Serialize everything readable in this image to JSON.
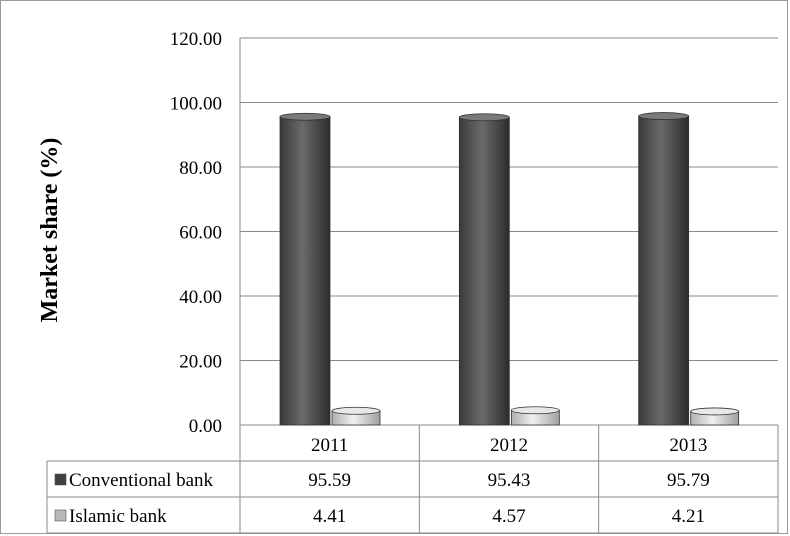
{
  "chart_data": {
    "type": "bar",
    "categories": [
      "2011",
      "2012",
      "2013"
    ],
    "series": [
      {
        "name": "Conventional bank",
        "values": [
          95.59,
          95.43,
          95.79
        ],
        "labels": [
          "95.59",
          "95.43",
          "95.79"
        ],
        "color": "#595959"
      },
      {
        "name": "Islamic bank",
        "values": [
          4.41,
          4.57,
          4.21
        ],
        "labels": [
          "4.41",
          "4.57",
          "4.21"
        ],
        "color": "#c8c8c8"
      }
    ],
    "title": "",
    "xlabel": "",
    "ylabel": "Market share (%)",
    "ylim": [
      0,
      120
    ],
    "yticks": [
      "0.00",
      "20.00",
      "40.00",
      "60.00",
      "80.00",
      "100.00",
      "120.00"
    ],
    "grid": true,
    "data_table": true,
    "bar_style": "3d-cylinder"
  }
}
